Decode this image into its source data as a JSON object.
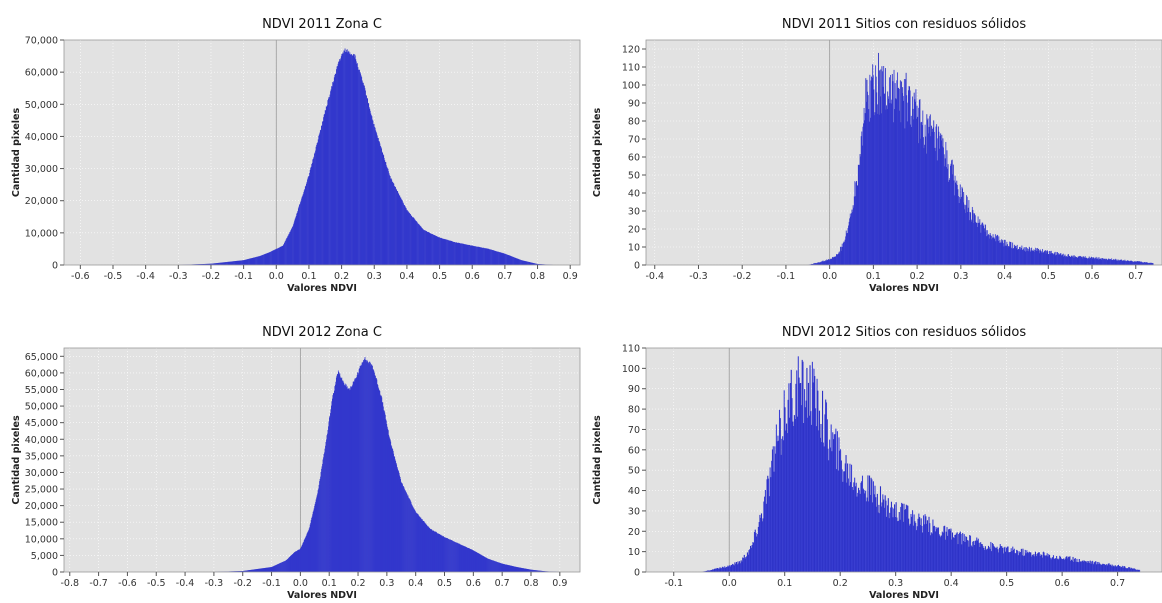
{
  "chart_data": [
    {
      "type": "bar",
      "title": "NDVI 2011 Zona C",
      "xlabel": "Valores NDVI",
      "ylabel": "Cantidad pixeles",
      "xlim": [
        -0.65,
        0.93
      ],
      "ylim": [
        0,
        70000
      ],
      "xticks": [
        -0.6,
        -0.5,
        -0.4,
        -0.3,
        -0.2,
        -0.1,
        0.0,
        0.1,
        0.2,
        0.3,
        0.4,
        0.5,
        0.6,
        0.7,
        0.8,
        0.9
      ],
      "xtick_labels": [
        "-0.6",
        "-0.5",
        "-0.4",
        "-0.3",
        "-0.2",
        "-0.1",
        "0.0",
        "0.1",
        "0.2",
        "0.3",
        "0.4",
        "0.5",
        "0.6",
        "0.7",
        "0.8",
        "0.9"
      ],
      "yticks": [
        0,
        10000,
        20000,
        30000,
        40000,
        50000,
        60000,
        70000
      ],
      "ytick_labels": [
        "0",
        "10,000",
        "20,000",
        "30,000",
        "40,000",
        "50,000",
        "60,000",
        "70,000"
      ],
      "color": "#2a2fc4",
      "points": [
        [
          -0.3,
          0
        ],
        [
          -0.2,
          400
        ],
        [
          -0.1,
          1500
        ],
        [
          -0.05,
          2800
        ],
        [
          -0.02,
          4000
        ],
        [
          0.0,
          5000
        ],
        [
          0.02,
          6000
        ],
        [
          0.05,
          12000
        ],
        [
          0.1,
          28000
        ],
        [
          0.15,
          48000
        ],
        [
          0.19,
          63000
        ],
        [
          0.21,
          67000
        ],
        [
          0.24,
          65000
        ],
        [
          0.27,
          55000
        ],
        [
          0.3,
          43000
        ],
        [
          0.35,
          27000
        ],
        [
          0.4,
          17000
        ],
        [
          0.45,
          11000
        ],
        [
          0.5,
          8500
        ],
        [
          0.55,
          7000
        ],
        [
          0.6,
          6000
        ],
        [
          0.65,
          5000
        ],
        [
          0.7,
          3500
        ],
        [
          0.75,
          1500
        ],
        [
          0.8,
          300
        ],
        [
          0.85,
          0
        ]
      ]
    },
    {
      "type": "bar",
      "title": "NDVI 2011 Sitios con residuos sólidos",
      "xlabel": "Valores NDVI",
      "ylabel": "Cantidad pixeles",
      "xlim": [
        -0.42,
        0.76
      ],
      "ylim": [
        0,
        125
      ],
      "xticks": [
        -0.4,
        -0.3,
        -0.2,
        -0.1,
        0.0,
        0.1,
        0.2,
        0.3,
        0.4,
        0.5,
        0.6,
        0.7
      ],
      "xtick_labels": [
        "-0.4",
        "-0.3",
        "-0.2",
        "-0.1",
        "0.0",
        "0.1",
        "0.2",
        "0.3",
        "0.4",
        "0.5",
        "0.6",
        "0.7"
      ],
      "yticks": [
        0,
        10,
        20,
        30,
        40,
        50,
        60,
        70,
        80,
        90,
        100,
        110,
        120
      ],
      "ytick_labels": [
        "0",
        "10",
        "20",
        "30",
        "40",
        "50",
        "60",
        "70",
        "80",
        "90",
        "100",
        "110",
        "120"
      ],
      "color": "#2a2fc4",
      "points": [
        [
          -0.05,
          0
        ],
        [
          0.0,
          3
        ],
        [
          0.02,
          6
        ],
        [
          0.04,
          18
        ],
        [
          0.06,
          45
        ],
        [
          0.08,
          88
        ],
        [
          0.1,
          100
        ],
        [
          0.12,
          100
        ],
        [
          0.15,
          95
        ],
        [
          0.18,
          90
        ],
        [
          0.2,
          82
        ],
        [
          0.23,
          72
        ],
        [
          0.26,
          62
        ],
        [
          0.28,
          50
        ],
        [
          0.3,
          38
        ],
        [
          0.33,
          26
        ],
        [
          0.36,
          18
        ],
        [
          0.4,
          12
        ],
        [
          0.45,
          9
        ],
        [
          0.5,
          7
        ],
        [
          0.55,
          5
        ],
        [
          0.6,
          4
        ],
        [
          0.65,
          3
        ],
        [
          0.7,
          2
        ],
        [
          0.74,
          1
        ]
      ]
    },
    {
      "type": "bar",
      "title": "NDVI 2012 Zona C",
      "xlabel": "Valores NDVI",
      "ylabel": "Cantidad pixeles",
      "xlim": [
        -0.82,
        0.97
      ],
      "ylim": [
        0,
        67500
      ],
      "xticks": [
        -0.8,
        -0.7,
        -0.6,
        -0.5,
        -0.4,
        -0.3,
        -0.2,
        -0.1,
        0.0,
        0.1,
        0.2,
        0.3,
        0.4,
        0.5,
        0.6,
        0.7,
        0.8,
        0.9
      ],
      "xtick_labels": [
        "-0.8",
        "-0.7",
        "-0.6",
        "-0.5",
        "-0.4",
        "-0.3",
        "-0.2",
        "-0.1",
        "0.0",
        "0.1",
        "0.2",
        "0.3",
        "0.4",
        "0.5",
        "0.6",
        "0.7",
        "0.8",
        "0.9"
      ],
      "yticks": [
        0,
        5000,
        10000,
        15000,
        20000,
        25000,
        30000,
        35000,
        40000,
        45000,
        50000,
        55000,
        60000,
        65000
      ],
      "ytick_labels": [
        "0",
        "5,000",
        "10,000",
        "15,000",
        "20,000",
        "25,000",
        "30,000",
        "35,000",
        "40,000",
        "45,000",
        "50,000",
        "55,000",
        "60,000",
        "65,000"
      ],
      "color": "#2a2fc4",
      "points": [
        [
          -0.3,
          0
        ],
        [
          -0.2,
          300
        ],
        [
          -0.1,
          1500
        ],
        [
          -0.05,
          3500
        ],
        [
          -0.02,
          6000
        ],
        [
          0.0,
          7000
        ],
        [
          0.03,
          13000
        ],
        [
          0.06,
          24000
        ],
        [
          0.09,
          40000
        ],
        [
          0.11,
          52000
        ],
        [
          0.13,
          60500
        ],
        [
          0.15,
          57000
        ],
        [
          0.17,
          55000
        ],
        [
          0.19,
          58000
        ],
        [
          0.22,
          64500
        ],
        [
          0.25,
          62000
        ],
        [
          0.28,
          53000
        ],
        [
          0.31,
          40000
        ],
        [
          0.35,
          27000
        ],
        [
          0.4,
          18000
        ],
        [
          0.45,
          13000
        ],
        [
          0.5,
          10500
        ],
        [
          0.55,
          8500
        ],
        [
          0.6,
          6500
        ],
        [
          0.65,
          4000
        ],
        [
          0.7,
          2500
        ],
        [
          0.75,
          1500
        ],
        [
          0.8,
          700
        ],
        [
          0.85,
          200
        ],
        [
          0.9,
          0
        ]
      ]
    },
    {
      "type": "bar",
      "title": "NDVI 2012 Sitios con residuos sólidos",
      "xlabel": "Valores NDVI",
      "ylabel": "Cantidad pixeles",
      "xlim": [
        -0.15,
        0.78
      ],
      "ylim": [
        0,
        110
      ],
      "xticks": [
        -0.1,
        0.0,
        0.1,
        0.2,
        0.3,
        0.4,
        0.5,
        0.6,
        0.7
      ],
      "xtick_labels": [
        "-0.1",
        "0.0",
        "0.1",
        "0.2",
        "0.3",
        "0.4",
        "0.5",
        "0.6",
        "0.7"
      ],
      "yticks": [
        0,
        10,
        20,
        30,
        40,
        50,
        60,
        70,
        80,
        90,
        100,
        110
      ],
      "ytick_labels": [
        "0",
        "10",
        "20",
        "30",
        "40",
        "50",
        "60",
        "70",
        "80",
        "90",
        "100",
        "110"
      ],
      "color": "#2a2fc4",
      "points": [
        [
          -0.05,
          0
        ],
        [
          0.0,
          3
        ],
        [
          0.02,
          5
        ],
        [
          0.04,
          12
        ],
        [
          0.06,
          30
        ],
        [
          0.08,
          55
        ],
        [
          0.1,
          78
        ],
        [
          0.12,
          88
        ],
        [
          0.14,
          90
        ],
        [
          0.16,
          82
        ],
        [
          0.18,
          68
        ],
        [
          0.2,
          55
        ],
        [
          0.23,
          45
        ],
        [
          0.26,
          38
        ],
        [
          0.3,
          30
        ],
        [
          0.35,
          24
        ],
        [
          0.4,
          18
        ],
        [
          0.45,
          14
        ],
        [
          0.5,
          11
        ],
        [
          0.55,
          9
        ],
        [
          0.6,
          7
        ],
        [
          0.65,
          5
        ],
        [
          0.7,
          3
        ],
        [
          0.74,
          1
        ]
      ]
    }
  ]
}
